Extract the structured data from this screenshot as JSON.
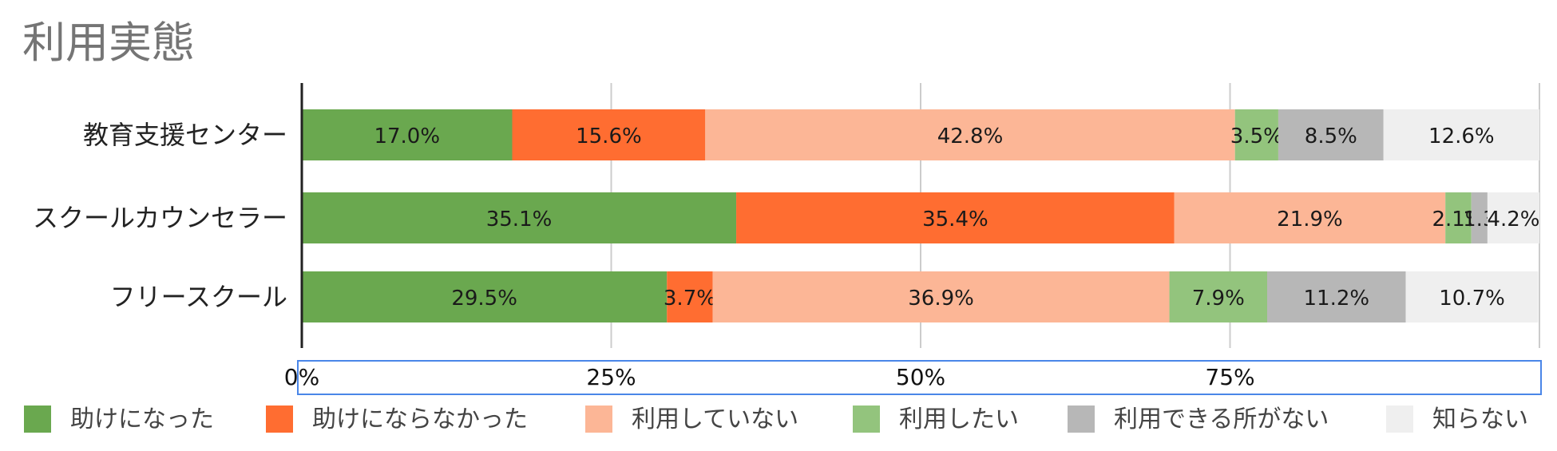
{
  "chart_data": {
    "type": "bar",
    "orientation": "horizontal",
    "stacked": true,
    "title": "利用実態",
    "categories": [
      "教育支援センター",
      "スクールカウンセラー",
      "フリースクール"
    ],
    "series": [
      {
        "name": "助けになった",
        "color": "#6aa84f",
        "values": [
          17.0,
          35.1,
          29.5
        ],
        "labels": [
          "17.0%",
          "35.1%",
          "29.5%"
        ]
      },
      {
        "name": "助けにならなかった",
        "color": "#ff6d31",
        "values": [
          15.6,
          35.4,
          3.7
        ],
        "labels": [
          "15.6%",
          "35.4%",
          "3.7%"
        ]
      },
      {
        "name": "利用していない",
        "color": "#fcb696",
        "values": [
          42.8,
          21.9,
          36.9
        ],
        "labels": [
          "42.8%",
          "21.9%",
          "36.9%"
        ]
      },
      {
        "name": "利用したい",
        "color": "#93c47d",
        "values": [
          3.5,
          2.1,
          7.9
        ],
        "labels": [
          "3.5%",
          "2.1%",
          "7.9%"
        ]
      },
      {
        "name": "利用できる所がない",
        "color": "#b7b7b7",
        "values": [
          8.5,
          1.3,
          11.2
        ],
        "labels": [
          "8.5%",
          "1.3",
          "11.2%"
        ]
      },
      {
        "name": "知らない",
        "color": "#efefef",
        "values": [
          12.6,
          4.2,
          10.7
        ],
        "labels": [
          "12.6%",
          "4.2%",
          "10.7%"
        ]
      }
    ],
    "x_ticks": [
      "0%",
      "25%",
      "50%",
      "75%"
    ],
    "xlim": [
      0,
      100
    ],
    "grid": true,
    "legend_position": "bottom"
  }
}
